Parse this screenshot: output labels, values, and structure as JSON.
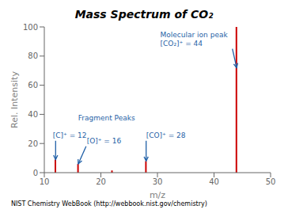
{
  "chart_data": {
    "type": "bar",
    "title": "Mass Spectrum of CO₂",
    "xlabel": "m/z",
    "ylabel": "Rel. Intensity",
    "x": [
      12,
      16,
      22,
      28,
      44
    ],
    "values": [
      9,
      6,
      1.5,
      8,
      100
    ],
    "color": "#cc0000",
    "xlim": [
      10,
      50
    ],
    "ylim": [
      0,
      100
    ],
    "xticks": [
      10,
      20,
      30,
      40,
      50
    ],
    "yticks": [
      0,
      20,
      40,
      60,
      80,
      100
    ],
    "grid": false,
    "annotations": [
      {
        "text": "Molecular ion peak\n[CO₂]⁺ = 44",
        "x": 44,
        "y": 72,
        "text_x": 30.5,
        "text_y": 92,
        "color": "#1f5fa6"
      },
      {
        "text": "Fragment Peaks",
        "x": 21,
        "y": 38,
        "color": "#1f5fa6"
      },
      {
        "text": "[C]⁺ = 12",
        "x": 12,
        "y": 9,
        "text_x": 11.5,
        "text_y": 26,
        "color": "#1f5fa6"
      },
      {
        "text": "[O]⁺ = 16",
        "x": 16,
        "y": 6,
        "text_x": 17.5,
        "text_y": 22,
        "color": "#1f5fa6"
      },
      {
        "text": "[CO]⁺ = 28",
        "x": 28,
        "y": 8,
        "text_x": 28,
        "text_y": 26,
        "color": "#1f5fa6"
      }
    ],
    "footer": "NIST Chemistry WebBook (http://webbook.nist.gov/chemistry)"
  }
}
